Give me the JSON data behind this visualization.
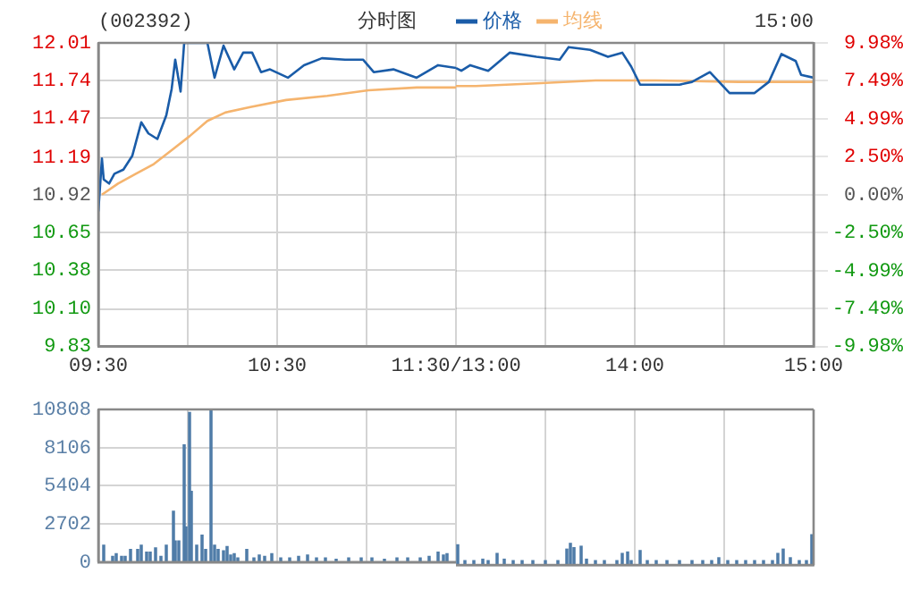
{
  "chart_data": [
    {
      "type": "line",
      "title": "(002392)",
      "subtitle": "分时图",
      "annotations": [
        "15:00"
      ],
      "legend": "top",
      "grid": true,
      "marker": "none",
      "line_style": "solid",
      "xlim": [
        9.5,
        11.5
      ],
      "xticks": [
        {
          "value": 9.5,
          "label": "09:30"
        },
        {
          "value": 10,
          "label": null
        },
        {
          "value": 10.5,
          "label": "10:30"
        },
        {
          "value": 11,
          "label": null
        },
        {
          "value": 11.5,
          "label": "11:30/13:00"
        }
      ],
      "ylim": [
        9.83,
        12.01
      ],
      "yticks": [
        9.83,
        {
          "value": 10.1,
          "label": "10.10"
        },
        10.38,
        10.65,
        10.92,
        11.19,
        11.47,
        11.74,
        12.01
      ],
      "series": [
        {
          "name": "价格",
          "color": "#1a5ca8",
          "x": [
            9.5,
            9.52,
            9.53,
            9.56,
            9.59,
            9.64,
            9.69,
            9.74,
            9.78,
            9.83,
            9.88,
            9.91,
            9.93,
            9.96,
            9.98,
            10.01,
            10.11,
            10.15,
            10.2,
            10.26,
            10.31,
            10.36,
            10.41,
            10.46,
            10.56,
            10.65,
            10.75,
            10.88,
            10.98,
            11.04,
            11.15,
            11.28,
            11.4,
            11.5
          ],
          "values": [
            10.8,
            11.18,
            11.03,
            11.0,
            11.07,
            11.1,
            11.2,
            11.44,
            11.36,
            11.32,
            11.49,
            11.68,
            11.89,
            11.66,
            12.01,
            12.01,
            12.01,
            11.76,
            11.99,
            11.82,
            11.94,
            11.94,
            11.8,
            11.82,
            11.76,
            11.85,
            11.9,
            11.89,
            11.89,
            11.8,
            11.82,
            11.76,
            11.85,
            11.83
          ]
        },
        {
          "name": "均线",
          "color": "#f5b46e",
          "x": [
            9.52,
            9.61,
            9.71,
            9.81,
            9.91,
            10.01,
            10.11,
            10.21,
            10.35,
            10.55,
            10.78,
            11.01,
            11.28,
            11.5
          ],
          "values": [
            10.92,
            11.0,
            11.07,
            11.14,
            11.24,
            11.34,
            11.45,
            11.51,
            11.55,
            11.6,
            11.63,
            11.67,
            11.69,
            11.69
          ]
        }
      ]
    },
    {
      "type": "line",
      "grid": true,
      "marker": "none",
      "line_style": "solid",
      "tick_labels": "x",
      "xlim": [
        13,
        15
      ],
      "xticks": [
        {
          "value": 13.5,
          "label": null
        },
        {
          "value": 14,
          "label": "14:00"
        },
        {
          "value": 14.5,
          "label": null
        },
        {
          "value": 15,
          "label": "15:00"
        }
      ],
      "ylim": [
        9.83,
        12.01
      ],
      "y2lim": [
        -9.98,
        9.98
      ],
      "y2ticks": [
        {
          "value": -9.98,
          "label": "-9.98%"
        },
        {
          "value": -7.49,
          "label": "-7.49%"
        },
        {
          "value": -4.99,
          "label": "-4.99%"
        },
        {
          "value": -2.5,
          "label": "-2.50%"
        },
        {
          "value": 0,
          "label": "0.00%"
        },
        {
          "value": 2.5,
          "label": "2.50%"
        },
        {
          "value": 4.99,
          "label": "4.99%"
        },
        {
          "value": 7.49,
          "label": "7.49%"
        },
        {
          "value": 9.98,
          "label": "9.98%"
        }
      ],
      "series": [
        {
          "color": "#1a5ca8",
          "x": [
            13,
            13.03,
            13.08,
            13.18,
            13.3,
            13.45,
            13.58,
            13.63,
            13.75,
            13.85,
            13.93,
            13.98,
            14.03,
            14.12,
            14.25,
            14.32,
            14.42,
            14.53,
            14.67,
            14.75,
            14.82,
            14.9,
            14.93,
            15
          ],
          "values": [
            11.83,
            11.81,
            11.85,
            11.81,
            11.94,
            11.91,
            11.89,
            11.98,
            11.96,
            11.91,
            11.94,
            11.84,
            11.71,
            11.71,
            11.71,
            11.73,
            11.8,
            11.65,
            11.65,
            11.73,
            11.93,
            11.88,
            11.78,
            11.76
          ]
        },
        {
          "color": "#f5b46e",
          "x": [
            13,
            13.11,
            13.45,
            13.78,
            14.12,
            14.58,
            15
          ],
          "values": [
            11.7,
            11.7,
            11.72,
            11.74,
            11.74,
            11.73,
            11.73
          ]
        }
      ]
    },
    {
      "type": "bar",
      "grid": true,
      "tick_labels": "y",
      "xlim": [
        9.5,
        11.5
      ],
      "xticks": [
        {
          "value": 9.5,
          "label": null
        },
        {
          "value": 10,
          "label": null
        },
        {
          "value": 10.5,
          "label": null
        },
        {
          "value": 11,
          "label": null
        },
        {
          "value": 11.5,
          "label": null
        }
      ],
      "ylim": [
        0,
        10808
      ],
      "yticks": [
        0,
        2702,
        5404,
        8106,
        10808
      ],
      "series": [
        {
          "color": "#4f7ca8",
          "x": [
            9.53,
            9.58,
            9.6,
            9.63,
            9.65,
            9.68,
            9.72,
            9.74,
            9.77,
            9.79,
            9.82,
            9.85,
            9.88,
            9.92,
            9.93,
            9.95,
            9.98,
            9.99,
            10.01,
            10.02,
            10.05,
            10.08,
            10.1,
            10.13,
            10.15,
            10.17,
            10.2,
            10.22,
            10.24,
            10.26,
            10.28,
            10.33,
            10.37,
            10.4,
            10.43,
            10.47,
            10.52,
            10.57,
            10.62,
            10.67,
            10.72,
            10.77,
            10.83,
            10.9,
            10.97,
            11.03,
            11.1,
            11.17,
            11.23,
            11.3,
            11.35,
            11.4,
            11.43,
            11.45
          ],
          "values": [
            1200,
            400,
            600,
            400,
            400,
            900,
            900,
            1200,
            700,
            700,
            1000,
            400,
            1200,
            3600,
            1500,
            1500,
            8300,
            2500,
            10600,
            5000,
            1200,
            1900,
            900,
            10800,
            1200,
            900,
            800,
            1100,
            500,
            600,
            300,
            900,
            300,
            500,
            400,
            600,
            300,
            300,
            400,
            500,
            300,
            300,
            200,
            300,
            300,
            300,
            200,
            300,
            300,
            300,
            400,
            700,
            500,
            600
          ]
        }
      ]
    },
    {
      "type": "bar",
      "grid": true,
      "tick_labels": false,
      "xlim": [
        13,
        15
      ],
      "xticks": [
        {
          "value": 13,
          "label": null
        },
        {
          "value": 13.5,
          "label": null
        },
        {
          "value": 14,
          "label": null
        },
        {
          "value": 14.5,
          "label": null
        },
        {
          "value": 15,
          "label": null
        }
      ],
      "ylim": [
        0,
        10808
      ],
      "series": [
        {
          "color": "#4f7ca8",
          "x": [
            13.01,
            13.05,
            13.1,
            13.15,
            13.18,
            13.23,
            13.27,
            13.32,
            13.37,
            13.43,
            13.5,
            13.57,
            13.62,
            13.64,
            13.66,
            13.7,
            13.73,
            13.78,
            13.83,
            13.9,
            13.93,
            13.96,
            13.98,
            14.03,
            14.07,
            14.12,
            14.18,
            14.25,
            14.32,
            14.38,
            14.43,
            14.47,
            14.52,
            14.57,
            14.62,
            14.67,
            14.72,
            14.77,
            14.8,
            14.83,
            14.87,
            14.92,
            14.96,
            14.99
          ],
          "values": [
            1400,
            300,
            300,
            400,
            300,
            800,
            400,
            300,
            300,
            300,
            300,
            300,
            1100,
            1500,
            1200,
            1300,
            400,
            300,
            300,
            300,
            800,
            900,
            300,
            1000,
            300,
            300,
            300,
            300,
            300,
            300,
            300,
            500,
            300,
            300,
            300,
            300,
            300,
            300,
            800,
            1100,
            500,
            300,
            300,
            2100
          ]
        }
      ]
    }
  ]
}
